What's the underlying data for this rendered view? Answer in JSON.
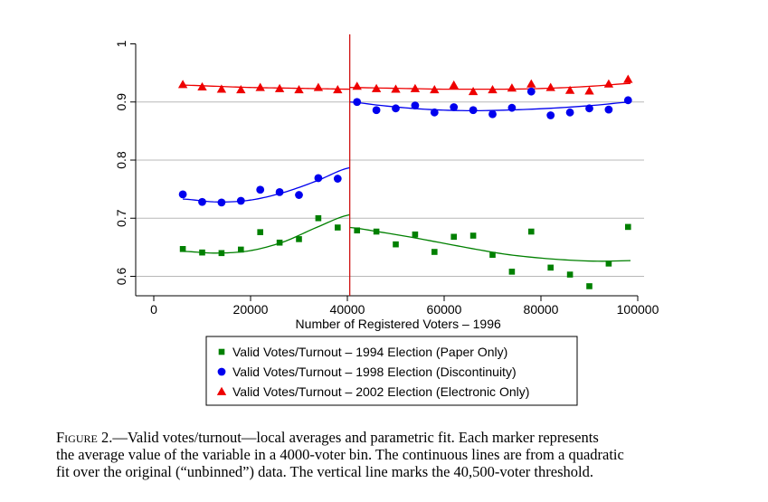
{
  "chart_data": {
    "type": "scatter",
    "xlabel": "Number of Registered Voters – 1996",
    "ylabel": "",
    "xlim": [
      0,
      100000
    ],
    "ylim": [
      0.585,
      1.005
    ],
    "x_ticks": [
      0,
      20000,
      40000,
      60000,
      80000,
      100000
    ],
    "x_tick_labels": [
      "0",
      "20000",
      "40000",
      "60000",
      "80000",
      "100000"
    ],
    "y_ticks": [
      0.6,
      0.7,
      0.8,
      0.9,
      1
    ],
    "y_tick_labels": [
      "0.6",
      "0.7",
      "0.8",
      "0.9",
      "1"
    ],
    "horizontal_grid": true,
    "threshold_x": 40500,
    "threshold_color": "#cc0000",
    "legend_position": "bottom",
    "series": [
      {
        "name": "Valid Votes/Turnout – 1994 Election (Paper Only)",
        "marker": "square",
        "color": "#008000",
        "x": [
          6000,
          10000,
          14000,
          18000,
          22000,
          26000,
          30000,
          34000,
          38000,
          42000,
          46000,
          50000,
          54000,
          58000,
          62000,
          66000,
          70000,
          74000,
          78000,
          82000,
          86000,
          90000,
          94000,
          98000
        ],
        "y": [
          0.647,
          0.641,
          0.64,
          0.646,
          0.676,
          0.658,
          0.664,
          0.7,
          0.684,
          0.679,
          0.677,
          0.655,
          0.672,
          0.642,
          0.668,
          0.67,
          0.637,
          0.608,
          0.677,
          0.615,
          0.603,
          0.583,
          0.622,
          0.685
        ],
        "fit_left": [
          0.643,
          0.64,
          0.644,
          0.659,
          0.684,
          0.706
        ],
        "fit_right": [
          0.684,
          0.676,
          0.667,
          0.657,
          0.647,
          0.638,
          0.632,
          0.628,
          0.626,
          0.627
        ]
      },
      {
        "name": "Valid Votes/Turnout – 1998 Election (Discontinuity)",
        "marker": "circle",
        "color": "#0000ee",
        "x": [
          6000,
          10000,
          14000,
          18000,
          22000,
          26000,
          30000,
          34000,
          38000,
          42000,
          46000,
          50000,
          54000,
          58000,
          62000,
          66000,
          70000,
          74000,
          78000,
          82000,
          86000,
          90000,
          94000,
          98000
        ],
        "y": [
          0.741,
          0.728,
          0.727,
          0.73,
          0.749,
          0.745,
          0.74,
          0.769,
          0.768,
          0.9,
          0.886,
          0.889,
          0.894,
          0.882,
          0.891,
          0.886,
          0.879,
          0.89,
          0.918,
          0.877,
          0.882,
          0.889,
          0.887,
          0.903
        ],
        "fit_left": [
          0.733,
          0.728,
          0.731,
          0.744,
          0.764,
          0.787
        ],
        "fit_right": [
          0.9,
          0.894,
          0.889,
          0.886,
          0.885,
          0.886,
          0.888,
          0.891,
          0.895,
          0.9
        ]
      },
      {
        "name": "Valid Votes/Turnout – 2002 Election (Electronic Only)",
        "marker": "triangle",
        "color": "#ee0000",
        "x": [
          6000,
          10000,
          14000,
          18000,
          22000,
          26000,
          30000,
          34000,
          38000,
          42000,
          46000,
          50000,
          54000,
          58000,
          62000,
          66000,
          70000,
          74000,
          78000,
          82000,
          86000,
          90000,
          94000,
          98000
        ],
        "y": [
          0.93,
          0.926,
          0.922,
          0.921,
          0.925,
          0.923,
          0.921,
          0.925,
          0.921,
          0.927,
          0.923,
          0.922,
          0.923,
          0.921,
          0.929,
          0.918,
          0.921,
          0.924,
          0.931,
          0.925,
          0.92,
          0.919,
          0.931,
          0.939
        ],
        "fit_left": [
          0.929,
          0.927,
          0.925,
          0.924,
          0.923,
          0.922
        ],
        "fit_right": [
          0.925,
          0.924,
          0.923,
          0.922,
          0.922,
          0.922,
          0.923,
          0.925,
          0.928,
          0.932
        ]
      }
    ]
  },
  "caption": {
    "fig_label": "Figure 2",
    "lines": [
      ".—Valid votes/turnout—local averages and parametric fit. Each marker represents",
      "the average value of the variable in a 4000-voter bin. The continuous lines are from a quadratic",
      "fit over the original (“unbinned”) data. The vertical line marks the 40,500-voter threshold."
    ]
  }
}
